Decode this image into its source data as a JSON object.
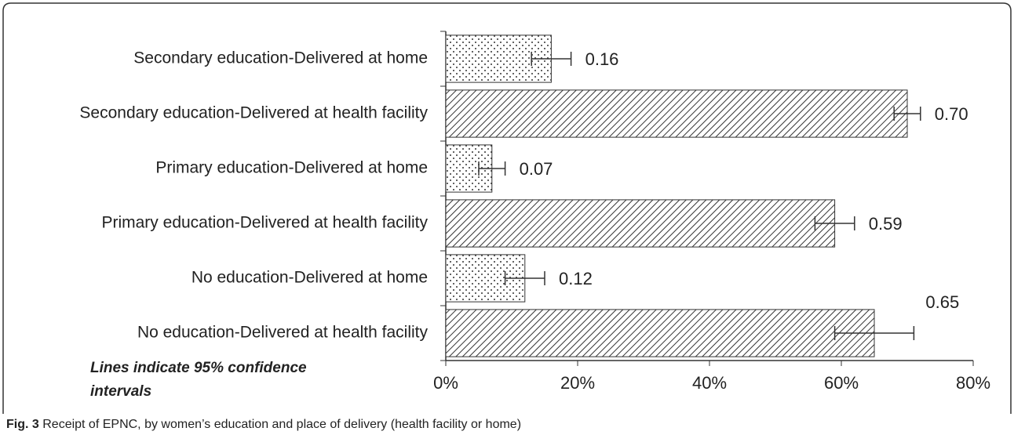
{
  "chart_data": {
    "type": "bar",
    "orientation": "horizontal",
    "categories": [
      "Secondary education-Delivered at home",
      "Secondary education-Delivered at health facility",
      "Primary education-Delivered at home",
      "Primary education-Delivered at health facility",
      "No education-Delivered at home",
      "No education-Delivered at health facility"
    ],
    "values": [
      16,
      70,
      7,
      59,
      12,
      65
    ],
    "value_labels": [
      "0.16",
      "0.70",
      "0.07",
      "0.59",
      "0.12",
      "0.65"
    ],
    "errors": [
      3,
      2,
      2,
      3,
      3,
      6
    ],
    "patterns": [
      "dots",
      "hatch",
      "dots",
      "hatch",
      "dots",
      "hatch"
    ],
    "xlim": [
      0,
      80
    ],
    "xticks": [
      {
        "value": 0,
        "label": "0%"
      },
      {
        "value": 20,
        "label": "20%"
      },
      {
        "value": 40,
        "label": "40%"
      },
      {
        "value": 60,
        "label": "60%"
      },
      {
        "value": 80,
        "label": "80%"
      }
    ],
    "annotation": [
      "Lines indicate 95% confidence",
      "intervals"
    ],
    "caption": {
      "label": "Fig. 3",
      "text": "Receipt of EPNC, by women’s education and place of delivery (health facility or home)"
    }
  }
}
